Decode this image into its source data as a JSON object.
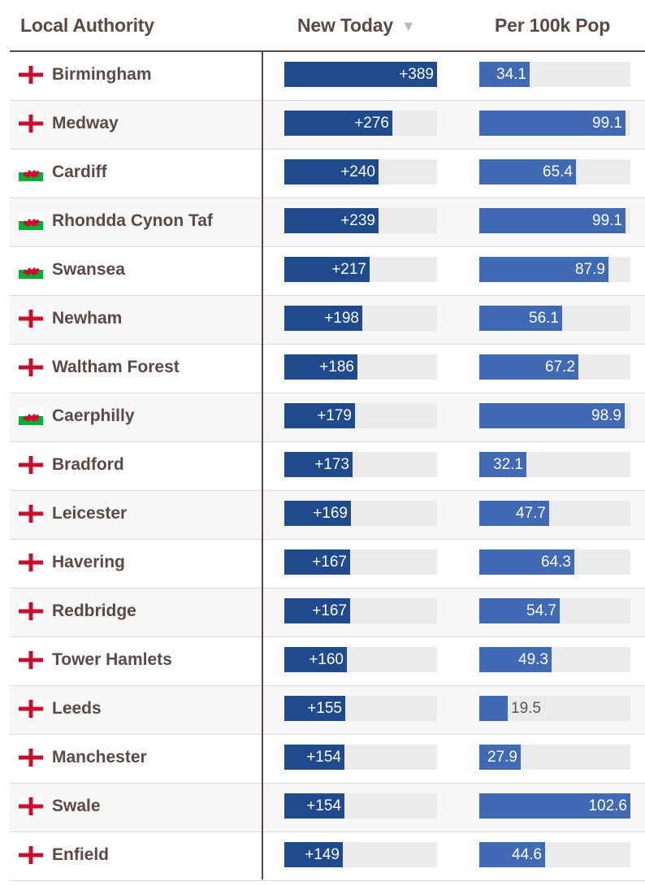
{
  "header": {
    "local_authority": "Local Authority",
    "new_today": "New Today",
    "sort_indicator": "▼",
    "per_100k": "Per 100k Pop"
  },
  "scales": {
    "new_max": 389,
    "pop_max": 102.6
  },
  "colors": {
    "new_bar": "#1f4a8c",
    "pop_bar": "#406ab3",
    "text": "#5b4a44",
    "england_cross": "#c8102e",
    "wales_green": "#00ad36",
    "wales_dragon": "#d30731"
  },
  "rows": [
    {
      "name": "Birmingham",
      "flag": "england-flag",
      "new_label": "+389",
      "new_value": 389,
      "pop_label": "34.1",
      "pop_value": 34.1
    },
    {
      "name": "Medway",
      "flag": "england-flag",
      "new_label": "+276",
      "new_value": 276,
      "pop_label": "99.1",
      "pop_value": 99.1
    },
    {
      "name": "Cardiff",
      "flag": "wales-flag",
      "new_label": "+240",
      "new_value": 240,
      "pop_label": "65.4",
      "pop_value": 65.4
    },
    {
      "name": "Rhondda Cynon Taf",
      "flag": "wales-flag",
      "new_label": "+239",
      "new_value": 239,
      "pop_label": "99.1",
      "pop_value": 99.1
    },
    {
      "name": "Swansea",
      "flag": "wales-flag",
      "new_label": "+217",
      "new_value": 217,
      "pop_label": "87.9",
      "pop_value": 87.9
    },
    {
      "name": "Newham",
      "flag": "england-flag",
      "new_label": "+198",
      "new_value": 198,
      "pop_label": "56.1",
      "pop_value": 56.1
    },
    {
      "name": "Waltham Forest",
      "flag": "england-flag",
      "new_label": "+186",
      "new_value": 186,
      "pop_label": "67.2",
      "pop_value": 67.2
    },
    {
      "name": "Caerphilly",
      "flag": "wales-flag",
      "new_label": "+179",
      "new_value": 179,
      "pop_label": "98.9",
      "pop_value": 98.9
    },
    {
      "name": "Bradford",
      "flag": "england-flag",
      "new_label": "+173",
      "new_value": 173,
      "pop_label": "32.1",
      "pop_value": 32.1
    },
    {
      "name": "Leicester",
      "flag": "england-flag",
      "new_label": "+169",
      "new_value": 169,
      "pop_label": "47.7",
      "pop_value": 47.7
    },
    {
      "name": "Havering",
      "flag": "england-flag",
      "new_label": "+167",
      "new_value": 167,
      "pop_label": "64.3",
      "pop_value": 64.3
    },
    {
      "name": "Redbridge",
      "flag": "england-flag",
      "new_label": "+167",
      "new_value": 167,
      "pop_label": "54.7",
      "pop_value": 54.7
    },
    {
      "name": "Tower Hamlets",
      "flag": "england-flag",
      "new_label": "+160",
      "new_value": 160,
      "pop_label": "49.3",
      "pop_value": 49.3
    },
    {
      "name": "Leeds",
      "flag": "england-flag",
      "new_label": "+155",
      "new_value": 155,
      "pop_label": "19.5",
      "pop_value": 19.5
    },
    {
      "name": "Manchester",
      "flag": "england-flag",
      "new_label": "+154",
      "new_value": 154,
      "pop_label": "27.9",
      "pop_value": 27.9
    },
    {
      "name": "Swale",
      "flag": "england-flag",
      "new_label": "+154",
      "new_value": 154,
      "pop_label": "102.6",
      "pop_value": 102.6
    },
    {
      "name": "Enfield",
      "flag": "england-flag",
      "new_label": "+149",
      "new_value": 149,
      "pop_label": "44.6",
      "pop_value": 44.6
    }
  ]
}
